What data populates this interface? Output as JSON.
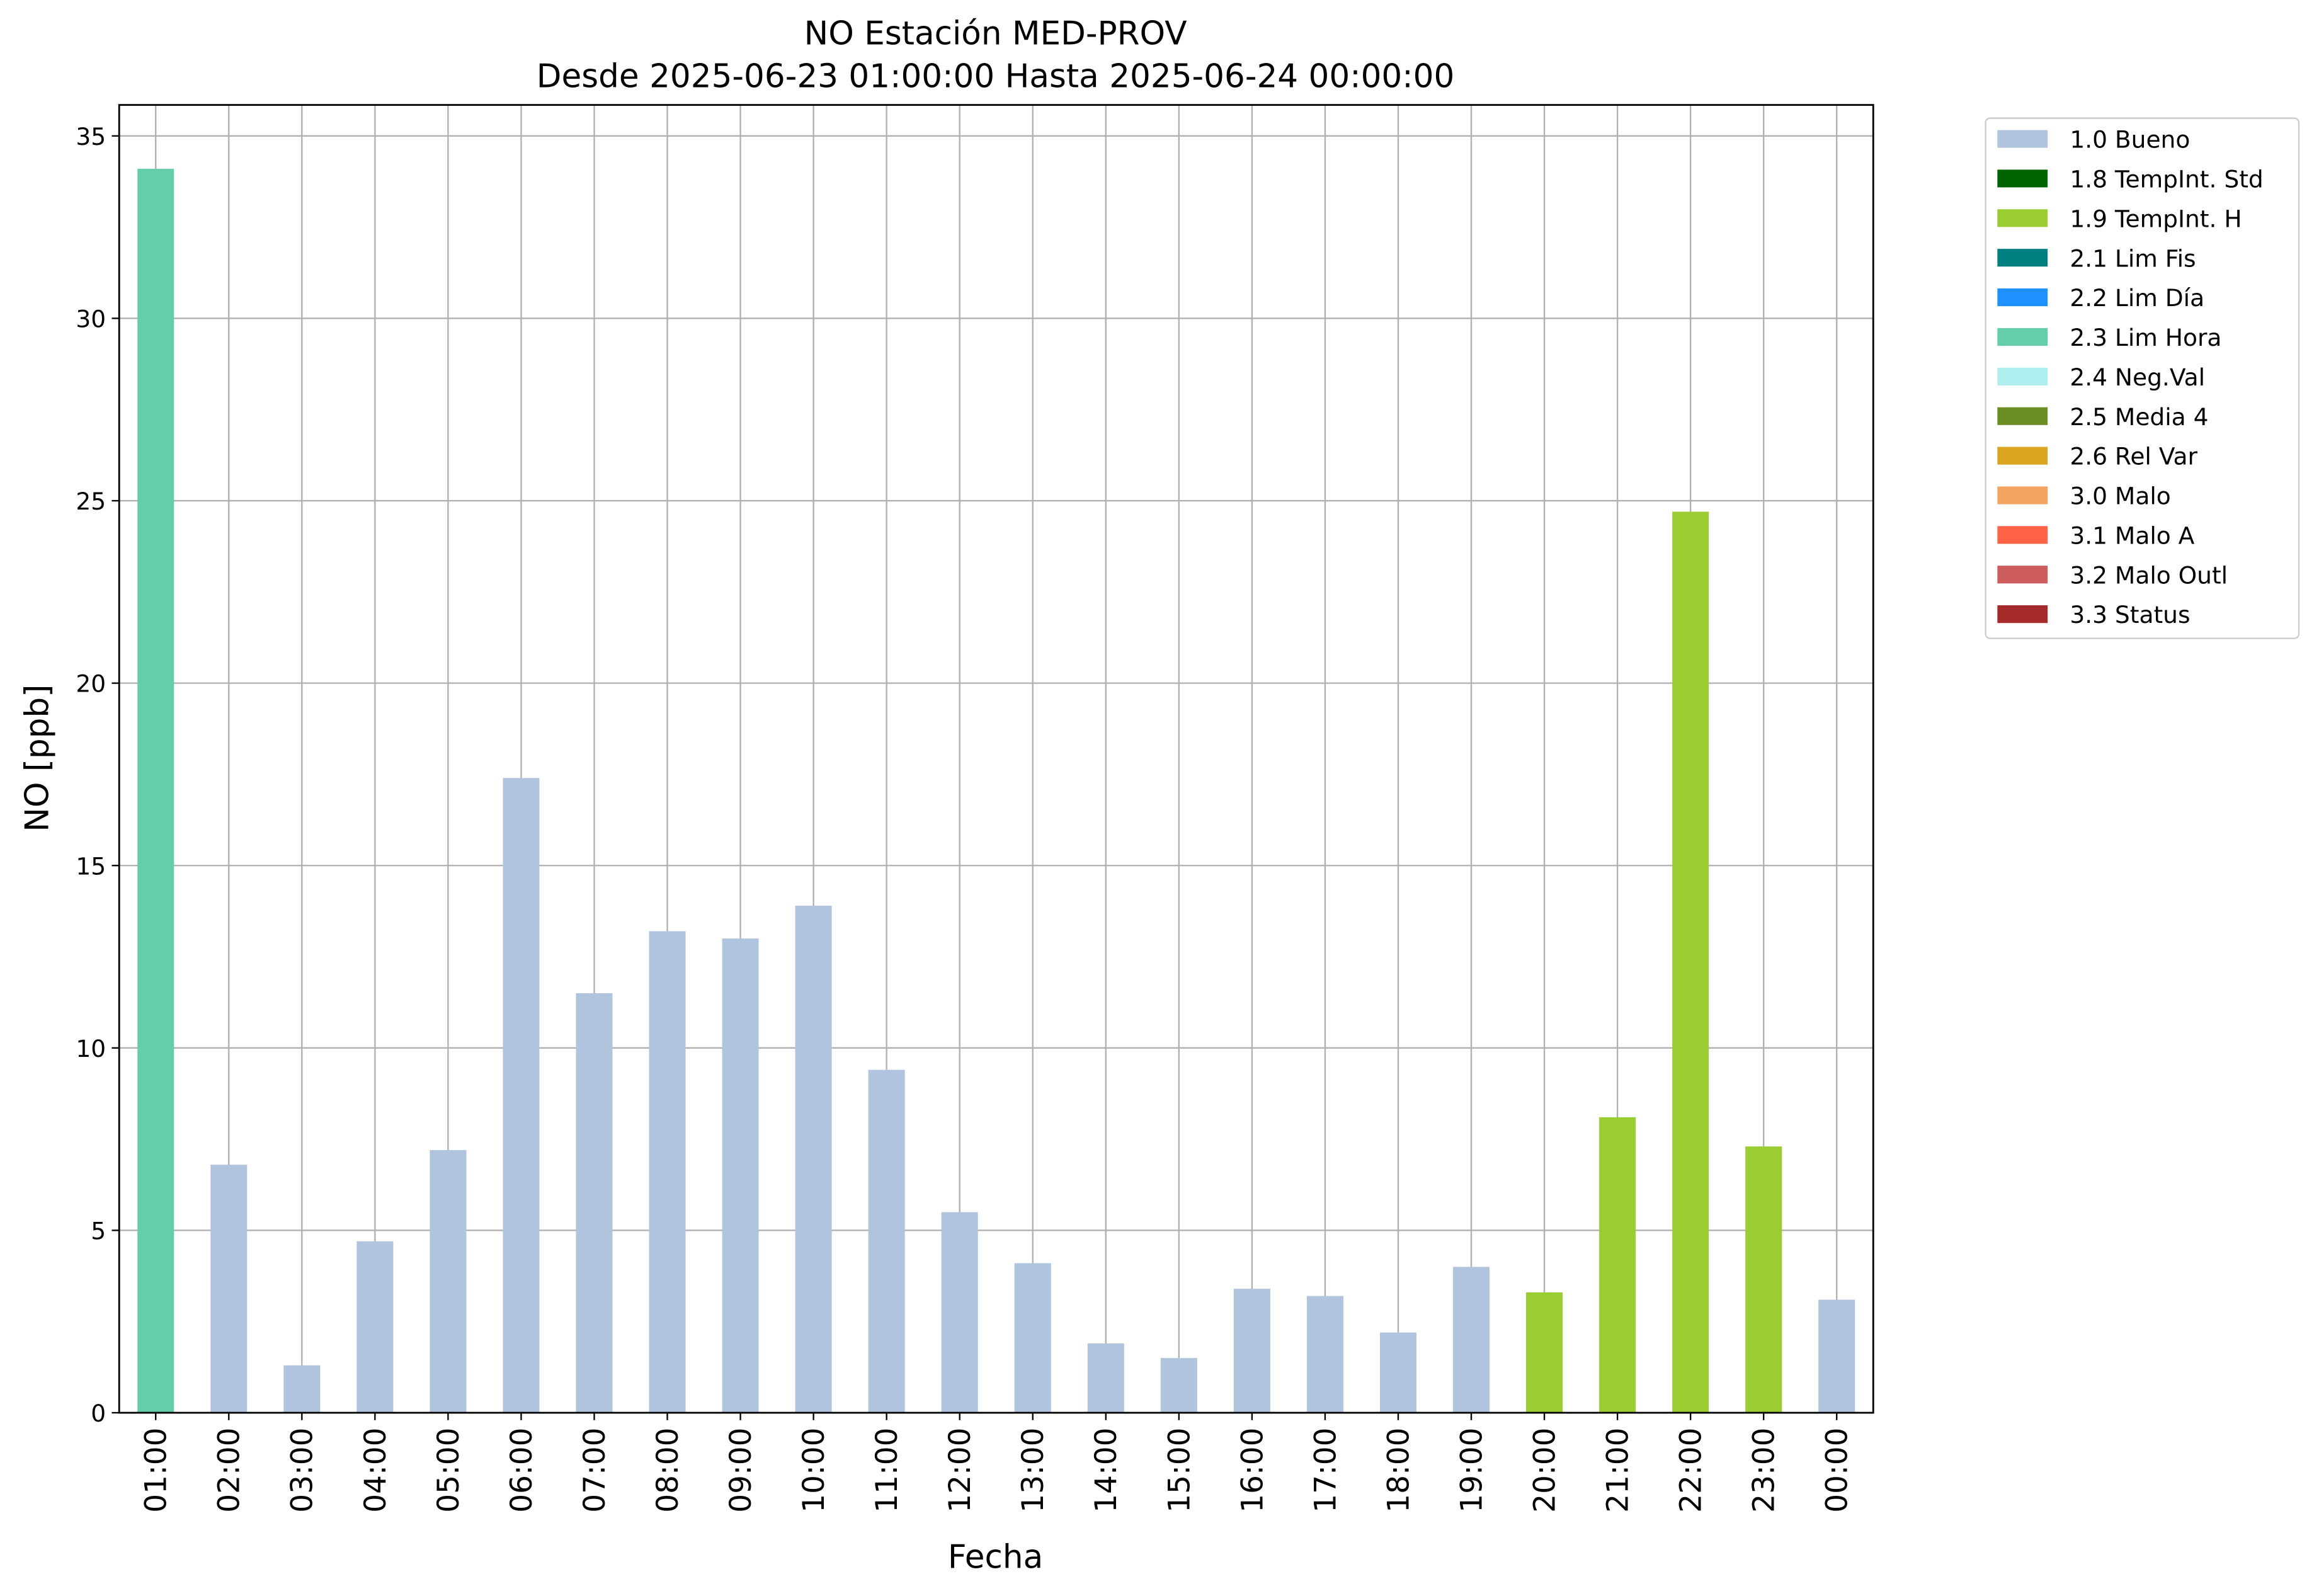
{
  "chart_data": {
    "type": "bar",
    "stacked": true,
    "title": "NO Estación MED-PROV",
    "subtitle": "Desde 2025-06-23 01:00:00 Hasta 2025-06-24 00:00:00",
    "x_label": "Fecha",
    "y_label": "NO [ppb]",
    "categories": [
      "01:00",
      "02:00",
      "03:00",
      "04:00",
      "05:00",
      "06:00",
      "07:00",
      "08:00",
      "09:00",
      "10:00",
      "11:00",
      "12:00",
      "13:00",
      "14:00",
      "15:00",
      "16:00",
      "17:00",
      "18:00",
      "19:00",
      "20:00",
      "21:00",
      "22:00",
      "23:00",
      "00:00"
    ],
    "series": [
      {
        "name": "1.0 Bueno",
        "color": "#b0c4de",
        "values": [
          null,
          6.8,
          1.3,
          4.7,
          7.2,
          17.4,
          11.5,
          13.2,
          13.0,
          13.9,
          9.4,
          5.5,
          4.1,
          1.9,
          1.5,
          3.4,
          3.2,
          2.2,
          4.0,
          null,
          null,
          null,
          null,
          3.1
        ]
      },
      {
        "name": "1.8 TempInt. Std",
        "color": "#006400",
        "values": [
          null,
          null,
          null,
          null,
          null,
          null,
          null,
          null,
          null,
          null,
          null,
          null,
          null,
          null,
          null,
          null,
          null,
          null,
          null,
          null,
          null,
          null,
          null,
          null
        ]
      },
      {
        "name": "1.9 TempInt. H",
        "color": "#9acd32",
        "values": [
          null,
          null,
          null,
          null,
          null,
          null,
          null,
          null,
          null,
          null,
          null,
          null,
          null,
          null,
          null,
          null,
          null,
          null,
          null,
          3.3,
          8.1,
          24.7,
          7.3,
          null
        ]
      },
      {
        "name": "2.1 Lim Fis",
        "color": "#008080",
        "values": [
          null,
          null,
          null,
          null,
          null,
          null,
          null,
          null,
          null,
          null,
          null,
          null,
          null,
          null,
          null,
          null,
          null,
          null,
          null,
          null,
          null,
          null,
          null,
          null
        ]
      },
      {
        "name": "2.2 Lim Día",
        "color": "#1e90ff",
        "values": [
          null,
          null,
          null,
          null,
          null,
          null,
          null,
          null,
          null,
          null,
          null,
          null,
          null,
          null,
          null,
          null,
          null,
          null,
          null,
          null,
          null,
          null,
          null,
          null
        ]
      },
      {
        "name": "2.3 Lim Hora",
        "color": "#66cdaa",
        "values": [
          34.1,
          null,
          null,
          null,
          null,
          null,
          null,
          null,
          null,
          null,
          null,
          null,
          null,
          null,
          null,
          null,
          null,
          null,
          null,
          null,
          null,
          null,
          null,
          null
        ]
      },
      {
        "name": "2.4 Neg.Val",
        "color": "#afeeee",
        "values": [
          null,
          null,
          null,
          null,
          null,
          null,
          null,
          null,
          null,
          null,
          null,
          null,
          null,
          null,
          null,
          null,
          null,
          null,
          null,
          null,
          null,
          null,
          null,
          null
        ]
      },
      {
        "name": "2.5 Media 4",
        "color": "#6b8e23",
        "values": [
          null,
          null,
          null,
          null,
          null,
          null,
          null,
          null,
          null,
          null,
          null,
          null,
          null,
          null,
          null,
          null,
          null,
          null,
          null,
          null,
          null,
          null,
          null,
          null
        ]
      },
      {
        "name": "2.6 Rel Var",
        "color": "#daa520",
        "values": [
          null,
          null,
          null,
          null,
          null,
          null,
          null,
          null,
          null,
          null,
          null,
          null,
          null,
          null,
          null,
          null,
          null,
          null,
          null,
          null,
          null,
          null,
          null,
          null
        ]
      },
      {
        "name": "3.0 Malo",
        "color": "#f4a460",
        "values": [
          null,
          null,
          null,
          null,
          null,
          null,
          null,
          null,
          null,
          null,
          null,
          null,
          null,
          null,
          null,
          null,
          null,
          null,
          null,
          null,
          null,
          null,
          null,
          null
        ]
      },
      {
        "name": "3.1 Malo A",
        "color": "#ff6347",
        "values": [
          null,
          null,
          null,
          null,
          null,
          null,
          null,
          null,
          null,
          null,
          null,
          null,
          null,
          null,
          null,
          null,
          null,
          null,
          null,
          null,
          null,
          null,
          null,
          null
        ]
      },
      {
        "name": "3.2 Malo Outl",
        "color": "#cd5c5c",
        "values": [
          null,
          null,
          null,
          null,
          null,
          null,
          null,
          null,
          null,
          null,
          null,
          null,
          null,
          null,
          null,
          null,
          null,
          null,
          null,
          null,
          null,
          null,
          null,
          null
        ]
      },
      {
        "name": "3.3 Status",
        "color": "#a52a2a",
        "values": [
          null,
          null,
          null,
          null,
          null,
          null,
          null,
          null,
          null,
          null,
          null,
          null,
          null,
          null,
          null,
          null,
          null,
          null,
          null,
          null,
          null,
          null,
          null,
          null
        ]
      }
    ],
    "ylim": [
      0,
      35.85
    ],
    "yticks": [
      0,
      5,
      10,
      15,
      20,
      25,
      30,
      35
    ],
    "grid": true,
    "legend": "outside-right"
  }
}
